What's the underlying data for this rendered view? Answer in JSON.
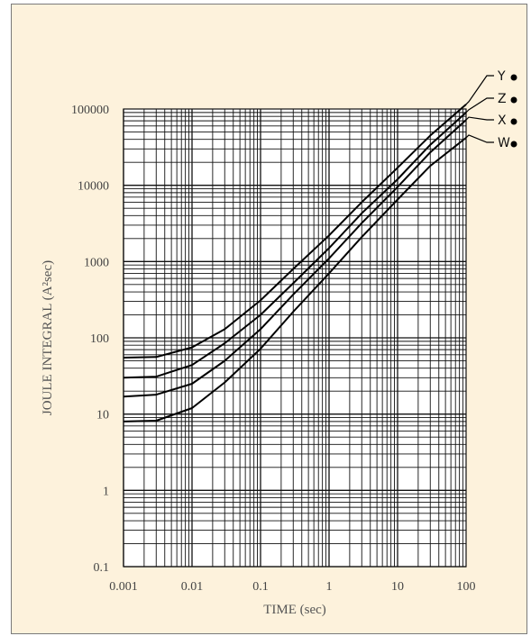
{
  "chart_data": {
    "type": "line",
    "xscale": "log",
    "yscale": "log",
    "xlim": [
      0.001,
      100
    ],
    "ylim": [
      0.1,
      100000
    ],
    "grid": true,
    "grid_style": "log-minor",
    "xlabel": "TIME (sec)",
    "ylabel": "JOULE INTEGRAL (A²sec)",
    "x_ticks": [
      "0.001",
      "0.01",
      "0.1",
      "1",
      "10",
      "100"
    ],
    "y_ticks": [
      "0.1",
      "1",
      "10",
      "100",
      "1000",
      "10000",
      "100000"
    ],
    "legend_placement": "right of plot, labels connected to curve ends",
    "series": [
      {
        "name": "Y",
        "x": [
          0.001,
          0.003,
          0.01,
          0.03,
          0.1,
          0.3,
          1,
          3,
          10,
          30,
          100
        ],
        "y": [
          55,
          56,
          75,
          130,
          310,
          800,
          2200,
          6000,
          17000,
          45000,
          115000
        ]
      },
      {
        "name": "Z",
        "x": [
          0.001,
          0.003,
          0.01,
          0.03,
          0.1,
          0.3,
          1,
          3,
          10,
          30,
          100
        ],
        "y": [
          30,
          31,
          44,
          85,
          200,
          520,
          1500,
          4300,
          12000,
          34000,
          90000
        ]
      },
      {
        "name": "X",
        "x": [
          0.001,
          0.003,
          0.01,
          0.03,
          0.1,
          0.3,
          1,
          3,
          10,
          30,
          100
        ],
        "y": [
          17,
          18,
          25,
          50,
          130,
          370,
          1100,
          3200,
          9500,
          27000,
          72000
        ]
      },
      {
        "name": "W",
        "x": [
          0.001,
          0.003,
          0.01,
          0.03,
          0.1,
          0.3,
          1,
          3,
          10,
          30,
          100
        ],
        "y": [
          8,
          8.2,
          12,
          26,
          72,
          220,
          700,
          2100,
          6500,
          18000,
          42000
        ]
      }
    ],
    "colors": {
      "background": "#fdf2dc",
      "plot_area": "#ffffff",
      "grid": "#111111",
      "curve": "#000000",
      "text": "#444444"
    }
  }
}
